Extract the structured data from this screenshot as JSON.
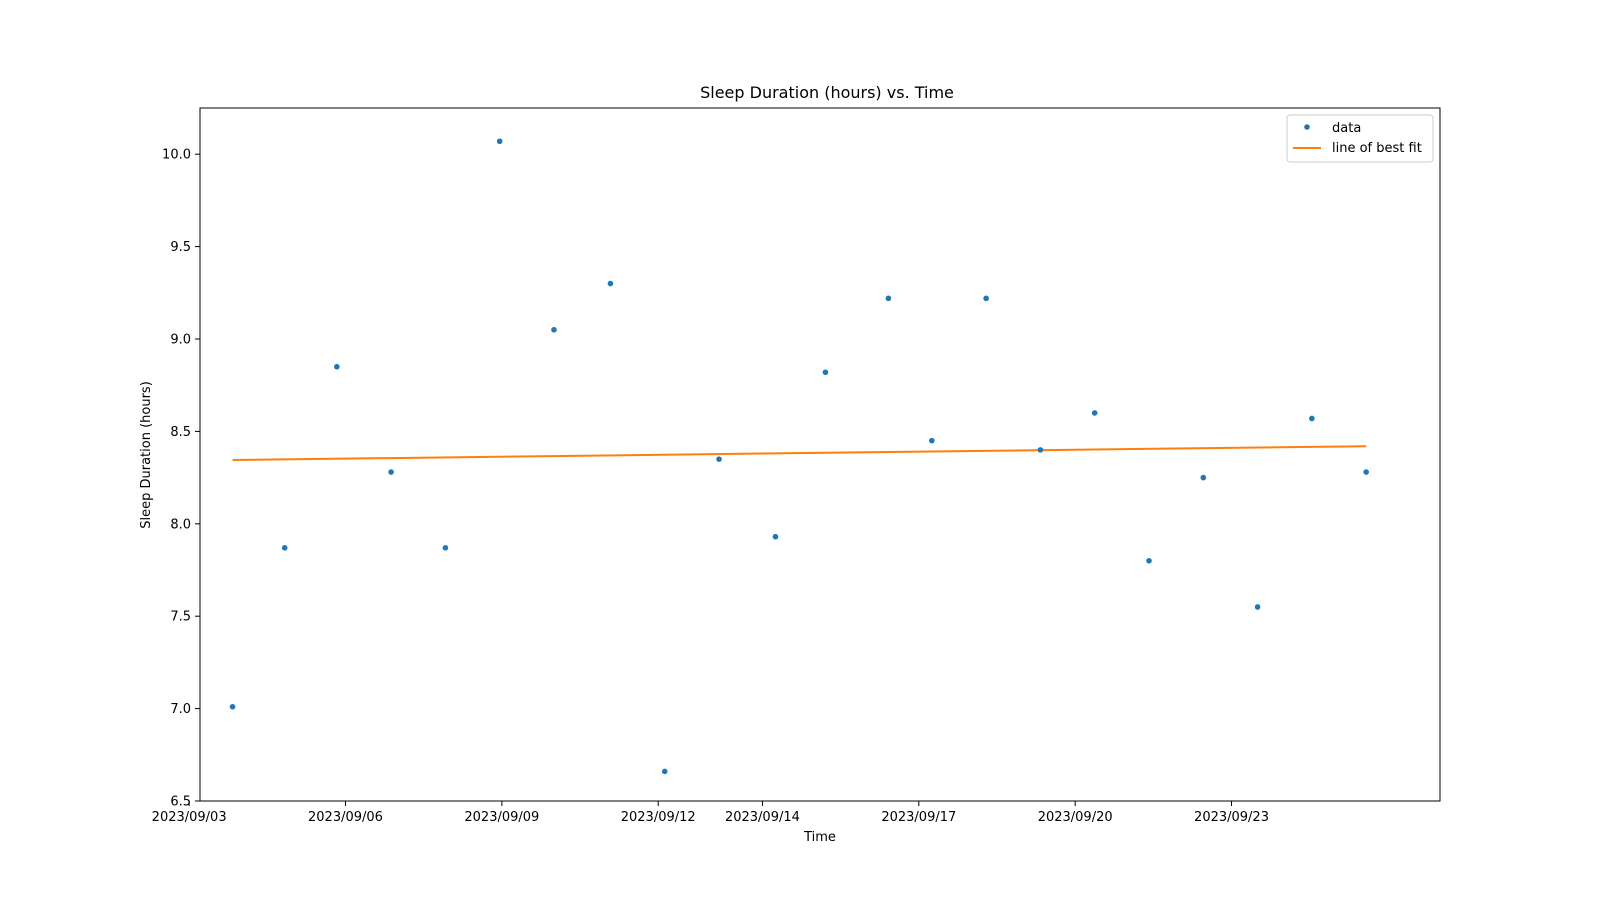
{
  "chart_data": {
    "type": "scatter",
    "title": "Sleep Duration (hours) vs. Time",
    "xlabel": "Time",
    "ylabel": "Sleep Duration (hours)",
    "x_type": "date",
    "xlim": [
      "2023-09-03 05:00",
      "2023-09-27 00:00"
    ],
    "ylim": [
      6.5,
      10.25
    ],
    "x_ticks": [
      "2023/09/03",
      "2023/09/06",
      "2023/09/09",
      "2023/09/12",
      "2023/09/14",
      "2023/09/17",
      "2023/09/20",
      "2023/09/23"
    ],
    "y_ticks": [
      "6.5",
      "7.0",
      "7.5",
      "8.0",
      "8.5",
      "9.0",
      "9.5",
      "10.0"
    ],
    "grid": false,
    "legend_position": "top-right",
    "series": [
      {
        "name": "data",
        "kind": "points",
        "color": "#1f77b4",
        "points": [
          {
            "x": "2023-09-03 20:00",
            "y": 7.01
          },
          {
            "x": "2023-09-04 20:00",
            "y": 7.87
          },
          {
            "x": "2023-09-05 20:00",
            "y": 8.85
          },
          {
            "x": "2023-09-06 21:00",
            "y": 8.28
          },
          {
            "x": "2023-09-07 22:00",
            "y": 7.87
          },
          {
            "x": "2023-09-08 23:00",
            "y": 10.07
          },
          {
            "x": "2023-09-10 00:00",
            "y": 9.05
          },
          {
            "x": "2023-09-11 02:00",
            "y": 9.3
          },
          {
            "x": "2023-09-12 03:00",
            "y": 6.66
          },
          {
            "x": "2023-09-13 04:00",
            "y": 8.35
          },
          {
            "x": "2023-09-14 06:00",
            "y": 7.93
          },
          {
            "x": "2023-09-15 05:00",
            "y": 8.82
          },
          {
            "x": "2023-09-16 10:00",
            "y": 9.22
          },
          {
            "x": "2023-09-17 06:00",
            "y": 8.45
          },
          {
            "x": "2023-09-18 07:00",
            "y": 9.22
          },
          {
            "x": "2023-09-19 08:00",
            "y": 8.4
          },
          {
            "x": "2023-09-20 09:00",
            "y": 8.6
          },
          {
            "x": "2023-09-21 10:00",
            "y": 7.8
          },
          {
            "x": "2023-09-22 11:00",
            "y": 8.25
          },
          {
            "x": "2023-09-23 12:00",
            "y": 7.55
          },
          {
            "x": "2023-09-24 13:00",
            "y": 8.57
          },
          {
            "x": "2023-09-25 14:00",
            "y": 8.28
          }
        ]
      },
      {
        "name": "line of best fit",
        "kind": "line",
        "color": "#ff7f0e",
        "points": [
          {
            "x": "2023-09-03 20:00",
            "y": 8.345
          },
          {
            "x": "2023-09-25 14:00",
            "y": 8.42
          }
        ]
      }
    ]
  }
}
